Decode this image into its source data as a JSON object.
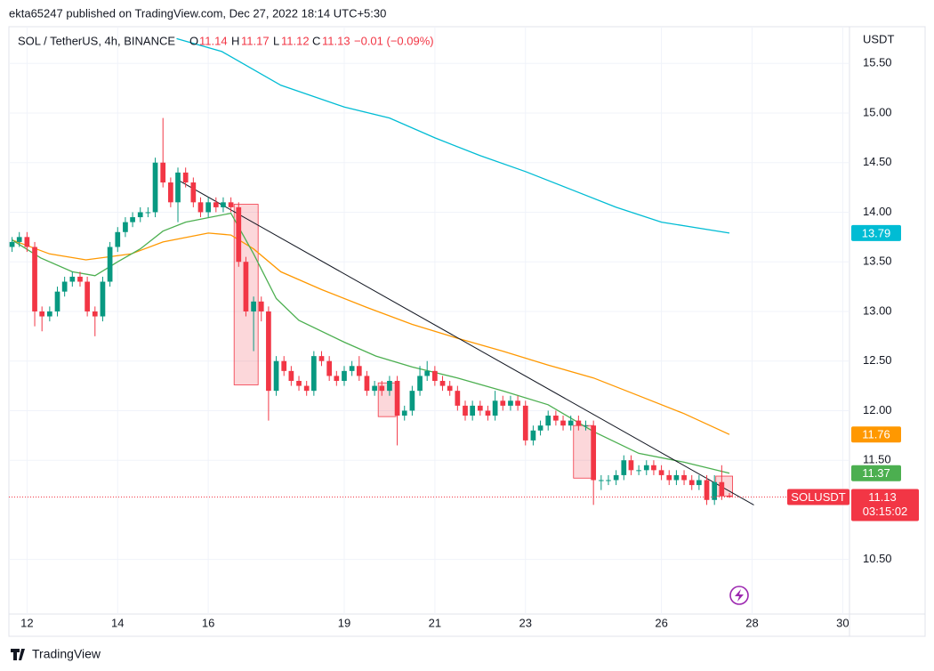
{
  "chart_data": {
    "type": "candlestick",
    "published": "ekta65247 published on TradingView.com, Dec 27, 2022 18:14 UTC+5:30",
    "title": "SOL / TetherUS, 4h, BINANCE",
    "ohlc_labels": [
      "O",
      "H",
      "L",
      "C"
    ],
    "change": "−0.01 (−0.09%)",
    "y_axis_label": "USDT",
    "symbol": "SOLUSDT",
    "countdown": "03:15:02",
    "brand": "TradingView",
    "up_color": "#089981",
    "down_color": "#f23645",
    "x": [
      11.67,
      11.83,
      12,
      12.17,
      12.33,
      12.5,
      12.67,
      12.83,
      13,
      13.17,
      13.33,
      13.5,
      13.67,
      13.83,
      14,
      14.17,
      14.33,
      14.5,
      14.67,
      14.83,
      15,
      15.17,
      15.33,
      15.5,
      15.67,
      15.83,
      16,
      16.17,
      16.33,
      16.5,
      16.67,
      16.83,
      17,
      17.17,
      17.33,
      17.5,
      17.67,
      17.83,
      18,
      18.17,
      18.33,
      18.5,
      18.67,
      18.83,
      19,
      19.17,
      19.33,
      19.5,
      19.67,
      19.83,
      20,
      20.17,
      20.33,
      20.5,
      20.67,
      20.83,
      21,
      21.17,
      21.33,
      21.5,
      21.67,
      21.83,
      22,
      22.17,
      22.33,
      22.5,
      22.67,
      22.83,
      23,
      23.17,
      23.33,
      23.5,
      23.67,
      23.83,
      24,
      24.17,
      24.33,
      24.5,
      24.67,
      24.83,
      25,
      25.17,
      25.33,
      25.5,
      25.67,
      25.83,
      26,
      26.17,
      26.33,
      26.5,
      26.67,
      26.83,
      27,
      27.17,
      27.33,
      27.5
    ],
    "open": [
      13.65,
      13.7,
      13.75,
      13.65,
      13.0,
      12.95,
      13.0,
      13.2,
      13.3,
      13.35,
      13.3,
      13.0,
      12.95,
      13.3,
      13.65,
      13.8,
      13.9,
      13.95,
      14.0,
      14.0,
      14.5,
      14.3,
      14.1,
      14.4,
      14.3,
      14.1,
      14.0,
      14.1,
      14.05,
      14.1,
      14.05,
      13.5,
      13.0,
      13.1,
      13.0,
      12.2,
      12.5,
      12.4,
      12.3,
      12.25,
      12.2,
      12.55,
      12.5,
      12.35,
      12.3,
      12.4,
      12.45,
      12.35,
      12.2,
      12.25,
      12.2,
      12.3,
      11.95,
      12.0,
      12.2,
      12.35,
      12.4,
      12.3,
      12.25,
      12.2,
      12.05,
      11.95,
      12.05,
      12.0,
      11.95,
      12.1,
      12.05,
      12.1,
      12.05,
      11.7,
      11.8,
      11.85,
      11.95,
      11.9,
      11.85,
      11.9,
      11.85,
      11.85,
      11.3,
      11.3,
      11.3,
      11.35,
      11.5,
      11.4,
      11.4,
      11.45,
      11.4,
      11.35,
      11.3,
      11.35,
      11.3,
      11.25,
      11.3,
      11.1,
      11.28,
      11.14
    ],
    "high": [
      13.75,
      13.8,
      13.8,
      13.7,
      13.05,
      13.05,
      13.25,
      13.35,
      13.4,
      13.4,
      13.35,
      13.05,
      13.35,
      13.7,
      13.85,
      13.95,
      14.0,
      14.05,
      14.05,
      14.55,
      14.95,
      14.35,
      14.45,
      14.45,
      14.35,
      14.15,
      14.15,
      14.15,
      14.15,
      14.15,
      14.1,
      13.55,
      13.15,
      13.15,
      13.05,
      12.55,
      12.55,
      12.45,
      12.35,
      12.3,
      12.6,
      12.6,
      12.55,
      12.4,
      12.45,
      12.5,
      12.55,
      12.4,
      12.3,
      12.3,
      12.35,
      12.35,
      12.05,
      12.25,
      12.45,
      12.5,
      12.45,
      12.35,
      12.3,
      12.25,
      12.1,
      12.1,
      12.1,
      12.05,
      12.2,
      12.15,
      12.15,
      12.15,
      12.1,
      11.85,
      11.9,
      12.0,
      12.0,
      11.95,
      11.95,
      11.95,
      11.9,
      11.9,
      11.35,
      11.35,
      11.4,
      11.55,
      11.55,
      11.45,
      11.5,
      11.5,
      11.45,
      11.4,
      11.4,
      11.4,
      11.35,
      11.35,
      11.35,
      11.35,
      11.45,
      11.17
    ],
    "low": [
      13.6,
      13.65,
      13.6,
      12.85,
      12.8,
      12.9,
      12.95,
      13.15,
      13.25,
      13.25,
      12.95,
      12.75,
      12.9,
      13.25,
      13.6,
      13.75,
      13.85,
      13.9,
      13.95,
      13.95,
      14.25,
      14.05,
      13.9,
      14.25,
      14.05,
      13.95,
      13.95,
      14.0,
      14.0,
      14.0,
      13.45,
      12.95,
      12.6,
      12.9,
      11.9,
      12.15,
      12.35,
      12.25,
      12.2,
      12.15,
      12.15,
      12.45,
      12.3,
      12.25,
      12.25,
      12.35,
      12.3,
      12.15,
      12.15,
      12.15,
      12.15,
      11.65,
      11.9,
      11.95,
      12.15,
      12.3,
      12.25,
      12.2,
      12.15,
      12.0,
      11.9,
      11.9,
      11.95,
      11.9,
      11.9,
      12.0,
      12.0,
      12.0,
      11.65,
      11.65,
      11.75,
      11.8,
      11.85,
      11.8,
      11.8,
      11.8,
      11.8,
      11.05,
      11.2,
      11.25,
      11.25,
      11.3,
      11.35,
      11.35,
      11.35,
      11.35,
      11.3,
      11.25,
      11.25,
      11.25,
      11.2,
      11.2,
      11.05,
      11.05,
      11.1,
      11.12
    ],
    "close": [
      13.7,
      13.75,
      13.65,
      13.0,
      12.95,
      13.0,
      13.2,
      13.3,
      13.35,
      13.3,
      13.0,
      12.95,
      13.3,
      13.65,
      13.8,
      13.9,
      13.95,
      14.0,
      14.0,
      14.5,
      14.3,
      14.1,
      14.4,
      14.3,
      14.1,
      14.0,
      14.1,
      14.05,
      14.1,
      14.05,
      13.5,
      13.0,
      13.1,
      13.0,
      12.2,
      12.5,
      12.4,
      12.3,
      12.25,
      12.2,
      12.55,
      12.5,
      12.35,
      12.3,
      12.4,
      12.45,
      12.35,
      12.2,
      12.25,
      12.2,
      12.3,
      11.95,
      12.0,
      12.2,
      12.35,
      12.4,
      12.3,
      12.25,
      12.2,
      12.05,
      11.95,
      12.05,
      12.0,
      11.95,
      12.1,
      12.05,
      12.1,
      12.05,
      11.7,
      11.8,
      11.85,
      11.95,
      11.9,
      11.85,
      11.9,
      11.85,
      11.85,
      11.3,
      11.3,
      11.3,
      11.35,
      11.5,
      11.4,
      11.4,
      11.45,
      11.4,
      11.35,
      11.3,
      11.35,
      11.3,
      11.25,
      11.3,
      11.1,
      11.28,
      11.14,
      11.13
    ],
    "lines": [
      {
        "color": "#00bcd4",
        "x": [
          15.3,
          16.3,
          17.6,
          19,
          20,
          21,
          22,
          23,
          24,
          25,
          26,
          27.5
        ],
        "values": [
          15.75,
          15.62,
          15.28,
          15.06,
          14.95,
          14.75,
          14.57,
          14.41,
          14.23,
          14.05,
          13.9,
          13.79
        ]
      },
      {
        "color": "#ff9800",
        "x": [
          11.67,
          12.5,
          13.3,
          14.3,
          15,
          16,
          16.5,
          17,
          17.6,
          18.5,
          19.5,
          20.5,
          21.5,
          22.5,
          23.5,
          24.5,
          25.5,
          26.5,
          27.5
        ],
        "values": [
          13.72,
          13.58,
          13.52,
          13.58,
          13.7,
          13.79,
          13.77,
          13.63,
          13.4,
          13.22,
          13.04,
          12.87,
          12.73,
          12.6,
          12.46,
          12.33,
          12.15,
          11.97,
          11.76
        ]
      },
      {
        "color": "#4caf50",
        "x": [
          11.67,
          12.3,
          13,
          13.5,
          14,
          14.5,
          15,
          15.5,
          16.5,
          17,
          17.5,
          18,
          19,
          19.7,
          20.5,
          21.5,
          22.5,
          23.5,
          24.5,
          25.5,
          26.5,
          27.5
        ],
        "values": [
          13.72,
          13.54,
          13.4,
          13.36,
          13.5,
          13.63,
          13.81,
          13.9,
          13.99,
          13.58,
          13.13,
          12.91,
          12.69,
          12.55,
          12.44,
          12.33,
          12.2,
          12.06,
          11.79,
          11.57,
          11.48,
          11.37
        ]
      }
    ],
    "trendline": {
      "x": [
        15.35,
        28.04
      ],
      "values": [
        14.32,
        11.05
      ]
    },
    "boxes": [
      {
        "x": [
          16.57,
          17.1
        ],
        "y": [
          12.26,
          14.08
        ]
      },
      {
        "x": [
          19.75,
          20.14
        ],
        "y": [
          11.94,
          12.28
        ]
      },
      {
        "x": [
          24.06,
          24.51
        ],
        "y": [
          11.32,
          11.85
        ]
      },
      {
        "x": [
          27.2,
          27.57
        ],
        "y": [
          11.14,
          11.34
        ]
      }
    ],
    "xlim": [
      11.6,
      30.15
    ],
    "ylim": [
      9.95,
      15.87
    ],
    "xticks": [
      12,
      14,
      16,
      19,
      21,
      23,
      26,
      28,
      30
    ],
    "yticks": [
      {
        "value": 10.5,
        "label": "10.50"
      },
      {
        "value": 11.5,
        "label": "11.50"
      },
      {
        "value": 12,
        "label": "12.00"
      },
      {
        "value": 12.5,
        "label": "12.50"
      },
      {
        "value": 13,
        "label": "13.00"
      },
      {
        "value": 13.5,
        "label": "13.50"
      },
      {
        "value": 14,
        "label": "14.00"
      },
      {
        "value": 14.5,
        "label": "14.50"
      },
      {
        "value": 15,
        "label": "15.00"
      },
      {
        "value": 15.5,
        "label": "15.50"
      }
    ],
    "grid": true,
    "last_price_line": true
  }
}
